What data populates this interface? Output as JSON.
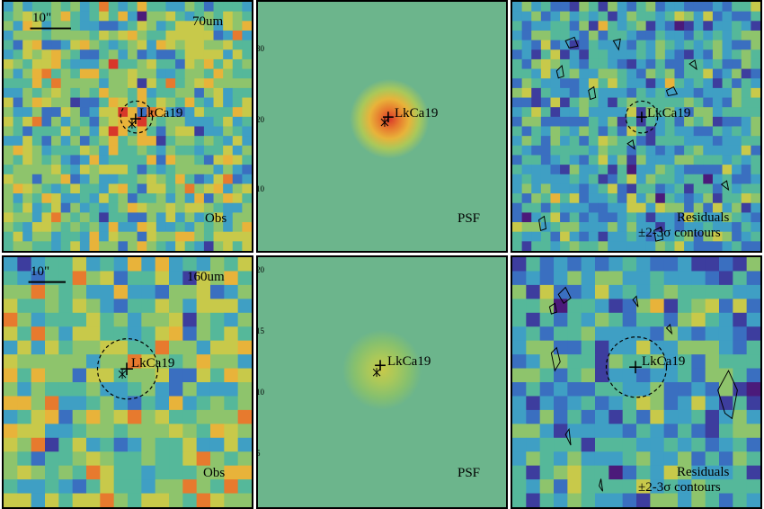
{
  "figure": {
    "rows": [
      {
        "band": "70um",
        "obs": {
          "band_label": "70um",
          "scale_label": "10\"",
          "corner_label": "Obs"
        },
        "psf": {
          "corner_label": "PSF"
        },
        "res": {
          "corner_label_1": "Residuals",
          "corner_label_2": "±2-3σ contours"
        },
        "source_name": "LkCa19",
        "tick_labels_right_of_obs": [
          "30",
          "20",
          "10"
        ]
      },
      {
        "band": "160um",
        "obs": {
          "band_label": "160um",
          "scale_label": "10\"",
          "corner_label": "Obs"
        },
        "psf": {
          "corner_label": "PSF"
        },
        "res": {
          "corner_label_1": "Residuals",
          "corner_label_2": "±2-3σ contours"
        },
        "source_name": "LkCa19",
        "tick_labels_right_of_obs": [
          "20",
          "15",
          "10",
          "5"
        ]
      }
    ],
    "colors": {
      "cmap": [
        "#4b1a7a",
        "#3d3d9e",
        "#3a6fc0",
        "#3f9fc4",
        "#55b89a",
        "#8ec46c",
        "#c8c94a",
        "#e8b33a",
        "#e77a2e",
        "#d8372a"
      ],
      "psf_background": "#6cb58c",
      "contour": "#000000"
    }
  }
}
